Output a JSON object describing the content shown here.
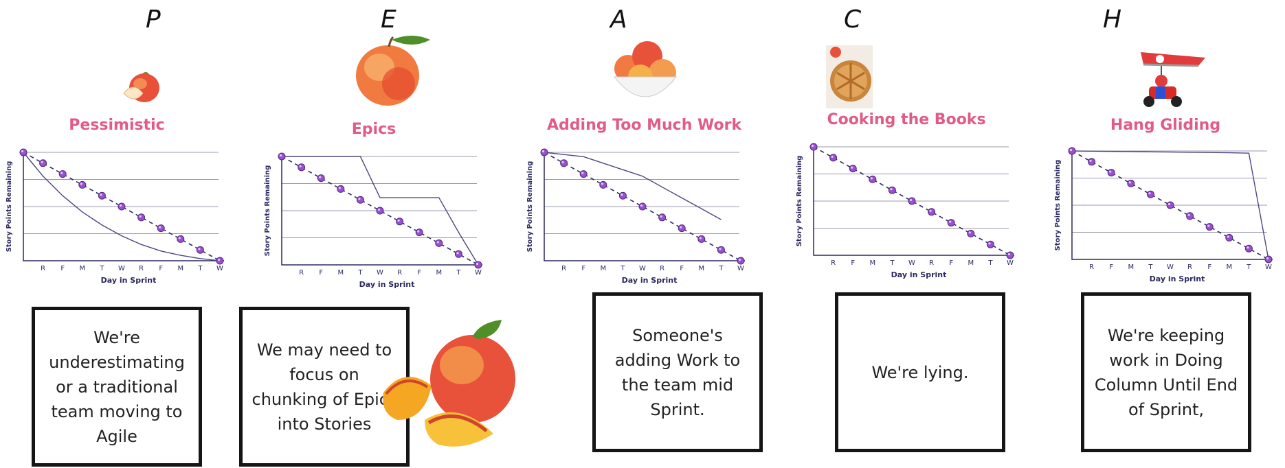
{
  "charts": [
    {
      "letter": "P",
      "title": "Pessimistic",
      "ylabel": "Story Points Remaining",
      "xlabel": "Day in Sprint",
      "days": [
        "R",
        "F",
        "M",
        "T",
        "W",
        "R",
        "F",
        "M",
        "T",
        "W"
      ],
      "ideal": [
        100,
        90,
        80,
        70,
        60,
        50,
        40,
        30,
        20,
        10,
        0
      ],
      "actual": [
        100,
        78,
        60,
        45,
        33,
        23,
        15,
        9,
        5,
        2,
        0
      ],
      "description": "We're underestimating or a traditional team moving to Agile",
      "icon": "peach-slice-icon"
    },
    {
      "letter": "E",
      "title": "Epics",
      "ylabel": "Story Points Remaining",
      "xlabel": "Day in Sprint",
      "days": [
        "R",
        "F",
        "M",
        "T",
        "W",
        "R",
        "F",
        "M",
        "T",
        "W"
      ],
      "ideal": [
        100,
        90,
        80,
        70,
        60,
        50,
        40,
        30,
        20,
        10,
        0
      ],
      "actual": [
        100,
        100,
        100,
        100,
        100,
        62,
        62,
        62,
        62,
        30,
        0
      ],
      "description": "We may need to focus on chunking of Epics into Stories",
      "icon": "peach-icon"
    },
    {
      "letter": "A",
      "title": "Adding Too Much Work",
      "ylabel": "Story Points Remaining",
      "xlabel": "Day in Sprint",
      "days": [
        "R",
        "F",
        "M",
        "T",
        "W",
        "R",
        "F",
        "M",
        "T",
        "W"
      ],
      "ideal": [
        100,
        90,
        80,
        70,
        60,
        50,
        40,
        30,
        20,
        10,
        0
      ],
      "actual": [
        100,
        98,
        96,
        90,
        84,
        78,
        68,
        58,
        48,
        38
      ],
      "description": "Someone's adding Work to the team mid Sprint.",
      "icon": "peach-bowl-icon"
    },
    {
      "letter": "C",
      "title": "Cooking the Books",
      "ylabel": "Story Points Remaining",
      "xlabel": "Day in Sprint",
      "days": [
        "R",
        "F",
        "M",
        "T",
        "W",
        "R",
        "F",
        "M",
        "T",
        "W"
      ],
      "ideal": [
        100,
        90,
        80,
        70,
        60,
        50,
        40,
        30,
        20,
        10,
        0
      ],
      "actual": [],
      "description": "We're lying.",
      "icon": "peach-pie-icon"
    },
    {
      "letter": "H",
      "title": "Hang Gliding",
      "ylabel": "Story Points Remaining",
      "xlabel": "Day in Sprint",
      "days": [
        "R",
        "F",
        "M",
        "T",
        "W",
        "R",
        "F",
        "M",
        "T",
        "W"
      ],
      "ideal": [
        100,
        90,
        80,
        70,
        60,
        50,
        40,
        30,
        20,
        10,
        0
      ],
      "actual": [
        100,
        99.8,
        99.6,
        99.4,
        99.2,
        99,
        98.8,
        98.6,
        98.4,
        98,
        0
      ],
      "description": "We're keeping work in Doing Column Until End of Sprint,",
      "icon": "hang-glider-kart-icon"
    }
  ],
  "colors": {
    "title": "#e05c86",
    "axis": "#2b2860",
    "grid": "#9a97b0",
    "actual_line": "#4b4680",
    "dot_fill": "#9b4fd1",
    "dot_stroke": "#4b2a7a",
    "ideal_line": "#2b2860",
    "box_border": "#151515"
  }
}
